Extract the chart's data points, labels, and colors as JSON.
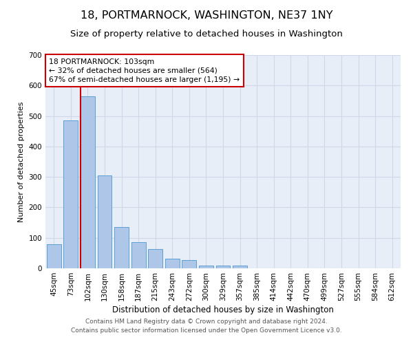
{
  "title": "18, PORTMARNOCK, WASHINGTON, NE37 1NY",
  "subtitle": "Size of property relative to detached houses in Washington",
  "xlabel": "Distribution of detached houses by size in Washington",
  "ylabel": "Number of detached properties",
  "footer_line1": "Contains HM Land Registry data © Crown copyright and database right 2024.",
  "footer_line2": "Contains public sector information licensed under the Open Government Licence v3.0.",
  "bar_labels": [
    "45sqm",
    "73sqm",
    "102sqm",
    "130sqm",
    "158sqm",
    "187sqm",
    "215sqm",
    "243sqm",
    "272sqm",
    "300sqm",
    "329sqm",
    "357sqm",
    "385sqm",
    "414sqm",
    "442sqm",
    "470sqm",
    "499sqm",
    "527sqm",
    "555sqm",
    "584sqm",
    "612sqm"
  ],
  "bar_values": [
    80,
    485,
    565,
    305,
    135,
    85,
    63,
    32,
    27,
    10,
    10,
    10,
    0,
    0,
    0,
    0,
    0,
    0,
    0,
    0,
    0
  ],
  "bar_color": "#aec6e8",
  "bar_edge_color": "#5a9fd4",
  "vline_color": "#cc0000",
  "vline_x_index": 2,
  "annotation_text_line1": "18 PORTMARNOCK: 103sqm",
  "annotation_text_line2": "← 32% of detached houses are smaller (564)",
  "annotation_text_line3": "67% of semi-detached houses are larger (1,195) →",
  "annotation_box_color": "#cc0000",
  "ylim": [
    0,
    700
  ],
  "yticks": [
    0,
    100,
    200,
    300,
    400,
    500,
    600,
    700
  ],
  "grid_color": "#d0d8e8",
  "bg_color": "#e8eef8",
  "title_fontsize": 11.5,
  "subtitle_fontsize": 9.5,
  "xlabel_fontsize": 8.5,
  "ylabel_fontsize": 8,
  "tick_fontsize": 7.5,
  "annotation_fontsize": 7.8,
  "footer_fontsize": 6.5
}
